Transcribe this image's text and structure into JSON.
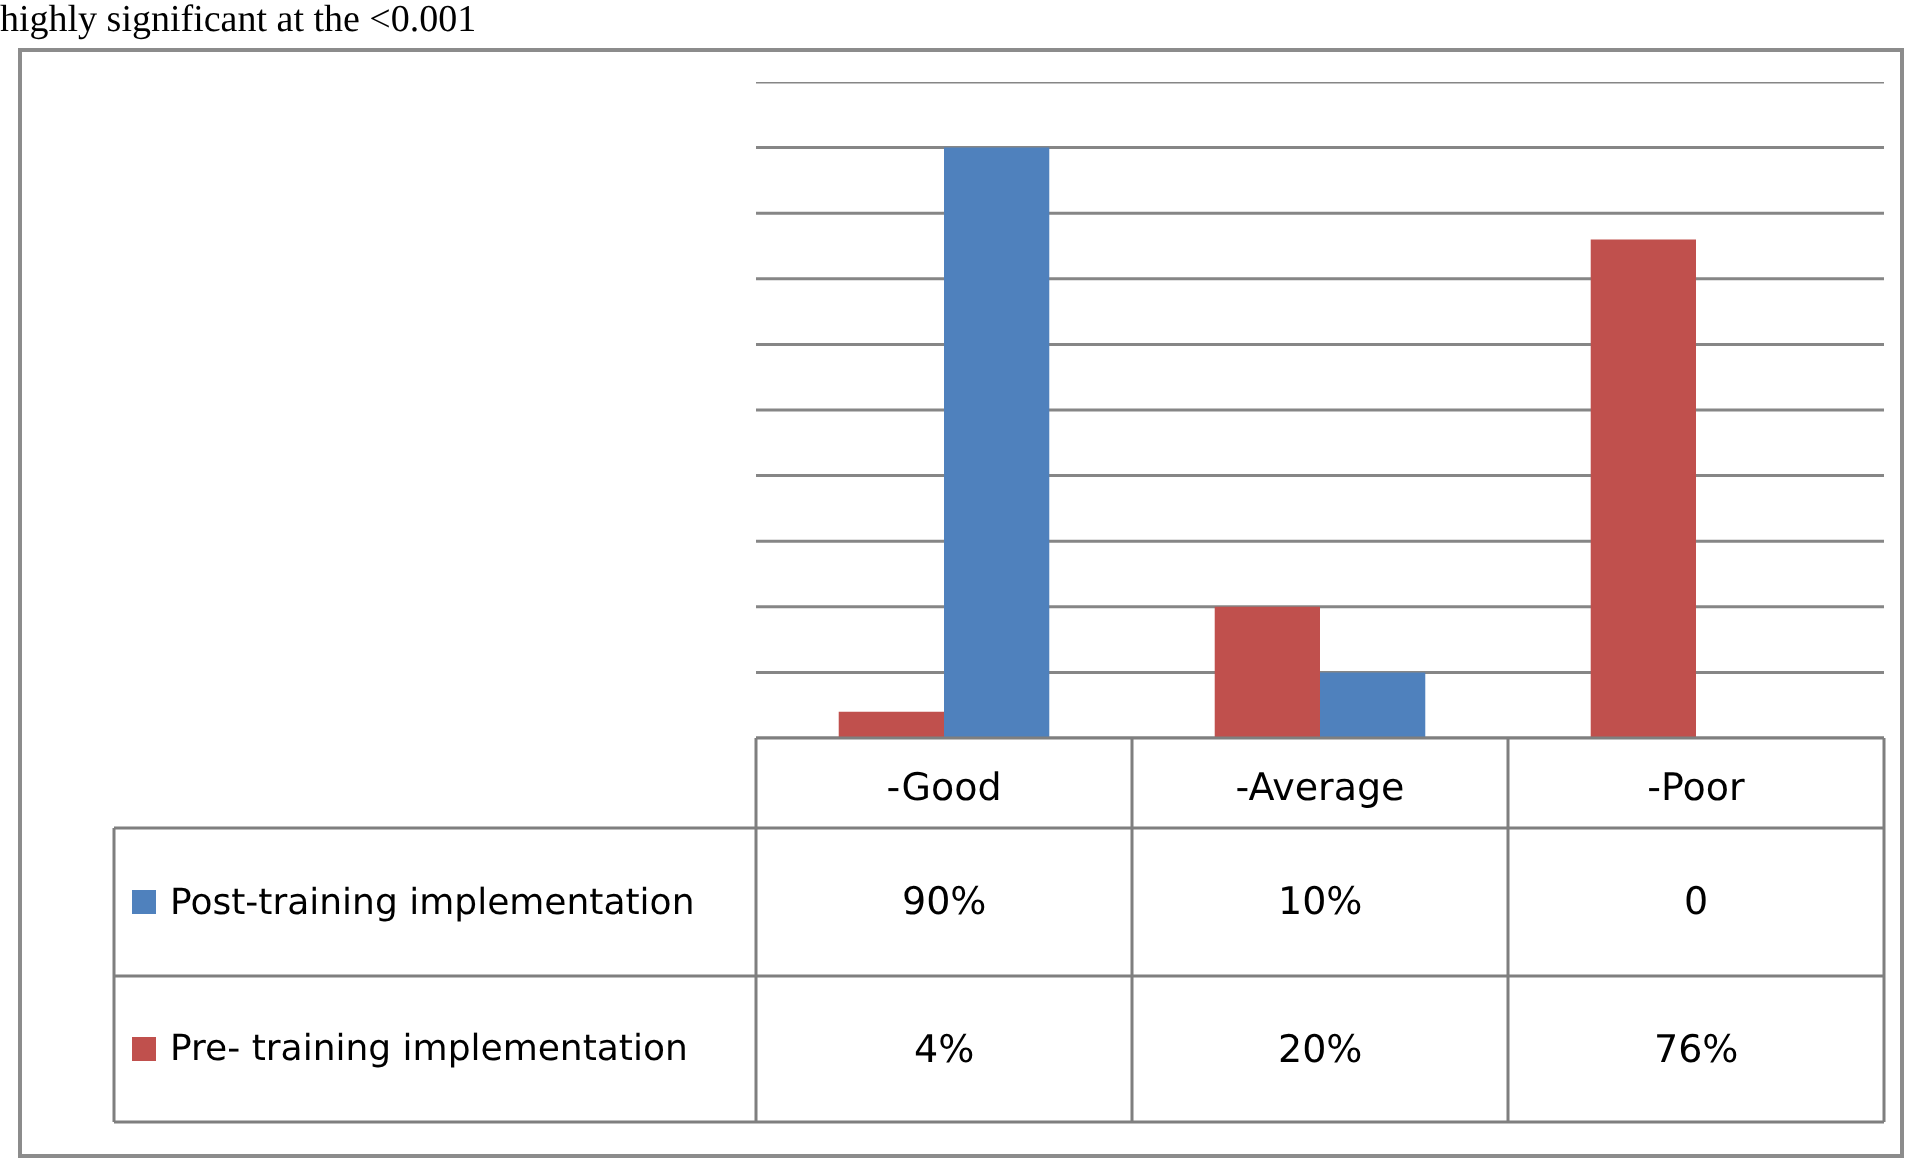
{
  "chart_data": {
    "type": "bar",
    "title": "highly significant at the <0.001",
    "categories": [
      "-Good",
      "-Average",
      "-Poor"
    ],
    "series": [
      {
        "name": "Post-training implementation",
        "color": "#4f81bd",
        "values": [
          90,
          10,
          0
        ],
        "value_labels": [
          "90%",
          "10%",
          "0"
        ]
      },
      {
        "name": "Pre- training implementation",
        "color": "#c0504d",
        "values": [
          4,
          20,
          76
        ],
        "value_labels": [
          "4%",
          "20%",
          "76%"
        ]
      }
    ],
    "ylim": [
      0,
      100
    ],
    "yticks": [
      {
        "value": 0,
        "label": null
      },
      {
        "value": 10,
        "label": null
      },
      {
        "value": 20,
        "label": null
      },
      {
        "value": 30,
        "label": null
      },
      {
        "value": 40,
        "label": null
      },
      {
        "value": 50,
        "label": null
      },
      {
        "value": 60,
        "label": null
      },
      {
        "value": 70,
        "label": null
      },
      {
        "value": 80,
        "label": null
      },
      {
        "value": 90,
        "label": null
      },
      {
        "value": 100,
        "label": null
      }
    ],
    "grid": "y",
    "legend": "bottom left"
  }
}
